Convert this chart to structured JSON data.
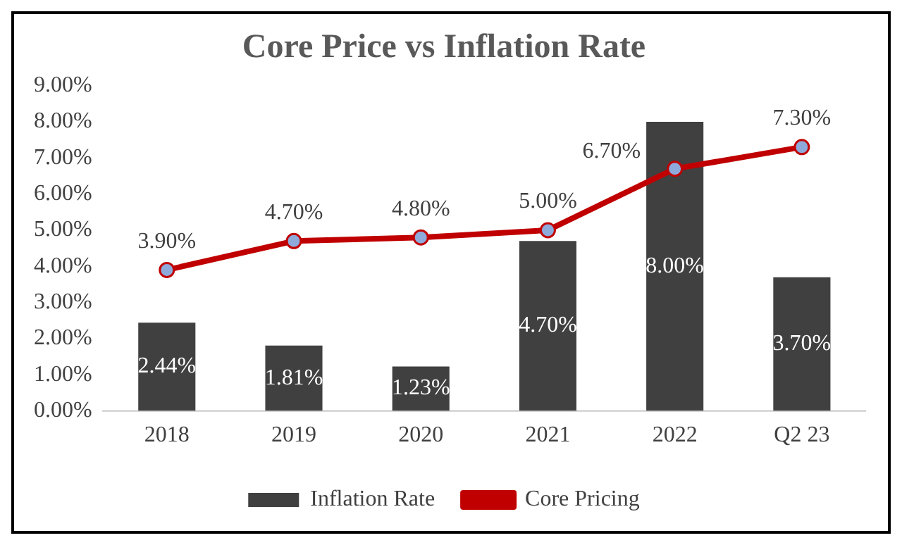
{
  "chart_data": {
    "type": "bar",
    "title": "Core Price vs Inflation Rate",
    "categories": [
      "2018",
      "2019",
      "2020",
      "2021",
      "2022",
      "Q2 23"
    ],
    "series": [
      {
        "name": "Inflation Rate",
        "color": "#404040",
        "values": [
          2.44,
          1.81,
          1.23,
          4.7,
          8.0,
          3.7
        ],
        "value_labels": [
          "2.44%",
          "1.81%",
          "1.23%",
          "4.70%",
          "8.00%",
          "3.70%"
        ]
      },
      {
        "name": "Core Pricing",
        "type": "line",
        "color": "#c00000",
        "values": [
          3.9,
          4.7,
          4.8,
          5.0,
          6.7,
          7.3
        ],
        "value_labels": [
          "3.90%",
          "4.70%",
          "4.80%",
          "5.00%",
          "6.70%",
          "7.30%"
        ]
      }
    ],
    "ylim": [
      0,
      9
    ],
    "yticks": [
      {
        "value": 0,
        "label": "0.00%"
      },
      {
        "value": 1,
        "label": "1.00%"
      },
      {
        "value": 2,
        "label": "2.00%"
      },
      {
        "value": 3,
        "label": "3.00%"
      },
      {
        "value": 4,
        "label": "4.00%"
      },
      {
        "value": 5,
        "label": "5.00%"
      },
      {
        "value": 6,
        "label": "6.00%"
      },
      {
        "value": 7,
        "label": "7.00%"
      },
      {
        "value": 8,
        "label": "8.00%"
      },
      {
        "value": 9,
        "label": "9.00%"
      }
    ],
    "grid": false,
    "legend": "bottom",
    "marker": "circle",
    "line_style": "solid"
  }
}
